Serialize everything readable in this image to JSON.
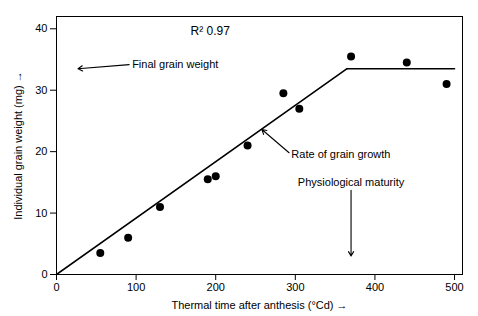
{
  "chart_data": {
    "type": "scatter",
    "xlabel": "Thermal time after anthesis (°Cd)",
    "ylabel": "Individual grain weight (mg)",
    "series": [
      {
        "type": "scatter",
        "color": "#000000",
        "marker": "o",
        "x": [
          55,
          90,
          130,
          190,
          200,
          240,
          285,
          305,
          370,
          440,
          490
        ],
        "values": [
          3.5,
          6.0,
          11.0,
          15.5,
          16.0,
          21.0,
          29.5,
          27.0,
          35.5,
          34.5,
          31.0
        ]
      },
      {
        "type": "line",
        "color": "#000000",
        "line_style": "solid",
        "x": [
          0,
          365
        ],
        "values": [
          0,
          33.5
        ]
      },
      {
        "type": "line",
        "color": "#000000",
        "line_style": "solid",
        "x": [
          365,
          500
        ],
        "values": [
          33.5,
          33.5
        ]
      }
    ],
    "annotations": [
      {
        "text": "R² 0.97"
      },
      {
        "text": "Final grain weight",
        "x": 95,
        "y": 34.2,
        "arrow_x": 27,
        "arrow_y": 33.5
      },
      {
        "text": "Rate of grain growth",
        "x": 295,
        "y": 19.5,
        "arrow_x": 258,
        "arrow_y": 23.6
      },
      {
        "text": "Physiological maturity",
        "x": 370,
        "y": 15,
        "arrow_x": 370,
        "arrow_y": 3
      }
    ],
    "xlim": [
      0,
      510
    ],
    "ylim": [
      0,
      42
    ],
    "xticks": [
      0,
      100,
      200,
      300,
      400,
      500
    ],
    "yticks": [
      0,
      10,
      20,
      30,
      40
    ],
    "grid": false
  }
}
